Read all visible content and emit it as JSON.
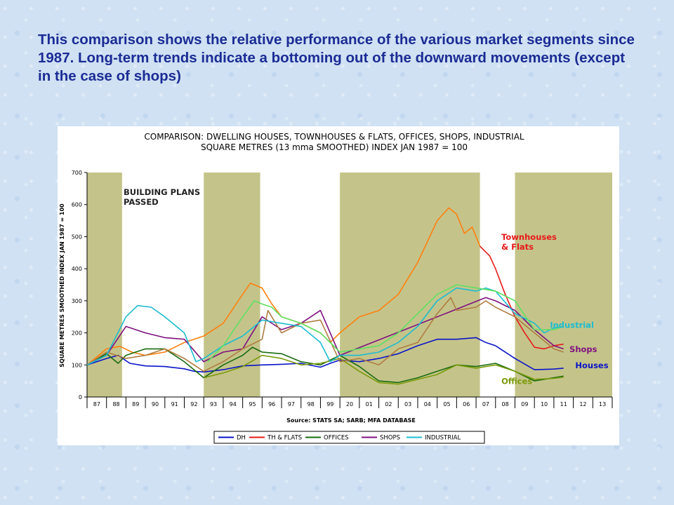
{
  "headline": "This comparison shows the relative performance of the various market segments since 1987.  Long-term trends indicate a bottoming out of the downward movements (except in the case of shops)",
  "chart_data": {
    "type": "line",
    "title": "COMPARISON: DWELLING HOUSES, TOWNHOUSES & FLATS, OFFICES, SHOPS, INDUSTRIAL",
    "subtitle": "SQUARE METRES (13 mma SMOOTHED) INDEX JAN 1987 = 100",
    "ylabel": "SQUARE METRES SMOOTHED INDEX JAN 1987 = 100",
    "xlabel": "Source: STATS SA; SARB; MFA DATABASE",
    "ylim": [
      0,
      700
    ],
    "yticks": [
      "0",
      "100",
      "200",
      "300",
      "400",
      "500",
      "600",
      "700"
    ],
    "xticks": [
      "87",
      "88",
      "89",
      "90",
      "91",
      "92",
      "93",
      "94",
      "95",
      "96",
      "97",
      "98",
      "99",
      "20",
      "01",
      "02",
      "03",
      "04",
      "05",
      "06",
      "07",
      "08",
      "09",
      "10",
      "11",
      "12",
      "13"
    ],
    "xlim": [
      1987,
      2014
    ],
    "shaded_periods": [
      [
        1987.0,
        1988.8
      ],
      [
        1993.0,
        1995.9
      ],
      [
        2000.0,
        2007.2
      ],
      [
        2009.0,
        2014.0
      ]
    ],
    "shaded_label": "BUILDING PLANS PASSED",
    "legend_position": "bottom",
    "series": [
      {
        "key": "dh",
        "name": "DH",
        "color": "#0a14c8",
        "label": "Houses",
        "points": [
          [
            1987,
            100
          ],
          [
            1988,
            120
          ],
          [
            1988.6,
            130
          ],
          [
            1989.2,
            105
          ],
          [
            1990,
            97
          ],
          [
            1991,
            95
          ],
          [
            1992,
            88
          ],
          [
            1992.5,
            80
          ],
          [
            1993,
            78
          ],
          [
            1994,
            85
          ],
          [
            1995,
            97
          ],
          [
            1996,
            100
          ],
          [
            1997,
            102
          ],
          [
            1998,
            105
          ],
          [
            1999,
            93
          ],
          [
            1999.5,
            105
          ],
          [
            2000,
            115
          ],
          [
            2001,
            110
          ],
          [
            2002,
            120
          ],
          [
            2003,
            135
          ],
          [
            2004,
            160
          ],
          [
            2005,
            180
          ],
          [
            2006,
            180
          ],
          [
            2007,
            185
          ],
          [
            2007.5,
            170
          ],
          [
            2008,
            160
          ],
          [
            2009,
            120
          ],
          [
            2010,
            85
          ],
          [
            2011,
            87
          ],
          [
            2011.5,
            90
          ]
        ]
      },
      {
        "key": "thf",
        "name": "TH & FLATS",
        "color": "#e81a1a",
        "label": "Townhouses & Flats",
        "points": [
          [
            2007.2,
            470
          ],
          [
            2007.7,
            440
          ],
          [
            2008,
            400
          ],
          [
            2008.5,
            320
          ],
          [
            2009,
            250
          ],
          [
            2009.5,
            200
          ],
          [
            2010,
            155
          ],
          [
            2010.5,
            150
          ],
          [
            2011,
            160
          ],
          [
            2011.5,
            165
          ]
        ]
      },
      {
        "key": "thf_orange",
        "name": "",
        "color": "#ff7f0e",
        "label": "",
        "points": [
          [
            1987,
            100
          ],
          [
            1988,
            150
          ],
          [
            1988.7,
            158
          ],
          [
            1989.3,
            140
          ],
          [
            1990,
            130
          ],
          [
            1991,
            140
          ],
          [
            1992,
            170
          ],
          [
            1993,
            190
          ],
          [
            1994,
            230
          ],
          [
            1995,
            320
          ],
          [
            1995.4,
            355
          ],
          [
            1996,
            340
          ],
          [
            1996.5,
            290
          ],
          [
            1997,
            250
          ],
          [
            1998,
            230
          ],
          [
            1999,
            200
          ],
          [
            1999.5,
            170
          ],
          [
            2000,
            200
          ],
          [
            2001,
            250
          ],
          [
            2002,
            270
          ],
          [
            2003,
            320
          ],
          [
            2004,
            420
          ],
          [
            2005,
            550
          ],
          [
            2005.6,
            590
          ],
          [
            2006,
            570
          ],
          [
            2006.4,
            510
          ],
          [
            2006.8,
            530
          ],
          [
            2007.2,
            470
          ]
        ]
      },
      {
        "key": "offices",
        "name": "OFFICES",
        "color": "#1a6b0f",
        "label": "",
        "points": [
          [
            1987,
            100
          ],
          [
            1988,
            135
          ],
          [
            1988.6,
            105
          ],
          [
            1989,
            130
          ],
          [
            1990,
            150
          ],
          [
            1991,
            150
          ],
          [
            1992,
            110
          ],
          [
            1993,
            60
          ],
          [
            1994,
            100
          ],
          [
            1995,
            130
          ],
          [
            1995.5,
            155
          ],
          [
            1996,
            140
          ],
          [
            1997,
            135
          ],
          [
            1998,
            110
          ],
          [
            1999,
            100
          ],
          [
            2000,
            130
          ],
          [
            2001,
            95
          ],
          [
            2002,
            50
          ],
          [
            2003,
            45
          ],
          [
            2004,
            60
          ],
          [
            2005,
            80
          ],
          [
            2006,
            100
          ],
          [
            2007,
            95
          ],
          [
            2008,
            105
          ],
          [
            2009,
            80
          ],
          [
            2010,
            50
          ],
          [
            2011,
            60
          ],
          [
            2011.5,
            65
          ]
        ]
      },
      {
        "key": "offices_olive",
        "name": "",
        "color": "#7a9a0a",
        "label": "Offices",
        "points": [
          [
            1993,
            60
          ],
          [
            1994,
            75
          ],
          [
            1995,
            95
          ],
          [
            1996,
            130
          ],
          [
            1997,
            120
          ],
          [
            1998,
            100
          ],
          [
            1999,
            105
          ],
          [
            2000,
            120
          ],
          [
            2001,
            80
          ],
          [
            2002,
            45
          ],
          [
            2003,
            40
          ],
          [
            2004,
            55
          ],
          [
            2005,
            70
          ],
          [
            2006,
            100
          ],
          [
            2007,
            90
          ],
          [
            2008,
            100
          ],
          [
            2009,
            80
          ],
          [
            2010,
            55
          ],
          [
            2011,
            58
          ],
          [
            2011.5,
            62
          ]
        ]
      },
      {
        "key": "shops",
        "name": "SHOPS",
        "color": "#7f107f",
        "label": "Shops",
        "points": [
          [
            1987,
            100
          ],
          [
            1988,
            130
          ],
          [
            1989,
            220
          ],
          [
            1990,
            200
          ],
          [
            1991,
            185
          ],
          [
            1992,
            180
          ],
          [
            1993,
            110
          ],
          [
            1994,
            140
          ],
          [
            1995,
            150
          ],
          [
            1996,
            250
          ],
          [
            1997,
            210
          ],
          [
            1998,
            230
          ],
          [
            1999,
            270
          ],
          [
            1999.5,
            200
          ],
          [
            2000,
            130
          ],
          [
            2007.5,
            310
          ],
          [
            2008,
            300
          ],
          [
            2009,
            270
          ],
          [
            2010,
            210
          ],
          [
            2011,
            160
          ],
          [
            2011.5,
            150
          ]
        ]
      },
      {
        "key": "shops_brown",
        "name": "",
        "color": "#b07c40",
        "label": "",
        "points": [
          [
            1987,
            100
          ],
          [
            1988,
            140
          ],
          [
            1989,
            120
          ],
          [
            1990,
            130
          ],
          [
            1991,
            150
          ],
          [
            1992,
            120
          ],
          [
            1993,
            80
          ],
          [
            1994,
            110
          ],
          [
            1995,
            150
          ],
          [
            1996,
            180
          ],
          [
            1996.3,
            270
          ],
          [
            1997,
            200
          ],
          [
            1998,
            230
          ],
          [
            1999,
            240
          ],
          [
            2000,
            110
          ],
          [
            2001,
            120
          ],
          [
            2002,
            100
          ],
          [
            2003,
            150
          ],
          [
            2004,
            170
          ],
          [
            2005,
            260
          ],
          [
            2005.7,
            310
          ],
          [
            2006,
            270
          ],
          [
            2007,
            280
          ],
          [
            2007.5,
            300
          ],
          [
            2008,
            280
          ],
          [
            2009,
            250
          ],
          [
            2010,
            200
          ],
          [
            2011,
            150
          ],
          [
            2011.5,
            140
          ]
        ]
      },
      {
        "key": "industrial",
        "name": "INDUSTRIAL",
        "color": "#1cbcd0",
        "label": "Industrial",
        "points": [
          [
            1987,
            100
          ],
          [
            1988,
            130
          ],
          [
            1989,
            250
          ],
          [
            1989.6,
            285
          ],
          [
            1990.3,
            280
          ],
          [
            1991,
            250
          ],
          [
            1992,
            200
          ],
          [
            1992.6,
            110
          ],
          [
            1993,
            120
          ],
          [
            1994,
            160
          ],
          [
            1995,
            190
          ],
          [
            1996,
            240
          ],
          [
            1997,
            230
          ],
          [
            1998,
            220
          ],
          [
            1999,
            170
          ],
          [
            1999.5,
            110
          ],
          [
            2000,
            130
          ],
          [
            2001,
            130
          ],
          [
            2002,
            140
          ],
          [
            2003,
            170
          ],
          [
            2004,
            220
          ],
          [
            2005,
            300
          ],
          [
            2006,
            340
          ],
          [
            2007,
            330
          ],
          [
            2007.5,
            340
          ],
          [
            2008,
            330
          ],
          [
            2009,
            260
          ],
          [
            2010,
            230
          ],
          [
            2010.5,
            200
          ],
          [
            2011,
            215
          ],
          [
            2011.5,
            220
          ]
        ]
      },
      {
        "key": "industrial_green",
        "name": "",
        "color": "#5fe062",
        "label": "",
        "points": [
          [
            1993.2,
            110
          ],
          [
            1994,
            160
          ],
          [
            1995,
            250
          ],
          [
            1995.6,
            300
          ],
          [
            1996,
            290
          ],
          [
            1996.5,
            280
          ],
          [
            1997,
            250
          ],
          [
            1998,
            230
          ],
          [
            1999,
            200
          ],
          [
            2000,
            140
          ],
          [
            2001,
            150
          ],
          [
            2002,
            160
          ],
          [
            2003,
            200
          ],
          [
            2004,
            260
          ],
          [
            2005,
            320
          ],
          [
            2006,
            350
          ],
          [
            2007,
            340
          ],
          [
            2008,
            330
          ],
          [
            2009,
            300
          ],
          [
            2010,
            210
          ],
          [
            2011,
            210
          ],
          [
            2011.5,
            220
          ]
        ]
      }
    ],
    "legend": [
      {
        "label": "DH",
        "color": "#0a14c8"
      },
      {
        "label": "TH & FLATS",
        "color": "#e81a1a"
      },
      {
        "label": "OFFICES",
        "color": "#1a6b0f"
      },
      {
        "label": "SHOPS",
        "color": "#7f107f"
      },
      {
        "label": "INDUSTRIAL",
        "color": "#1cbcd0"
      }
    ],
    "annotations": [
      {
        "key": "townhouses",
        "lines": [
          "Townhouses",
          "& Flats"
        ],
        "color": "#e81a1a",
        "x": 2008.3,
        "y": 490
      },
      {
        "key": "industrial",
        "lines": [
          "Industrial"
        ],
        "color": "#1cbcd0",
        "x": 2010.8,
        "y": 215
      },
      {
        "key": "shops",
        "lines": [
          "Shops"
        ],
        "color": "#7f107f",
        "x": 2011.8,
        "y": 140
      },
      {
        "key": "houses",
        "lines": [
          "Houses"
        ],
        "color": "#0a14c8",
        "x": 2012.1,
        "y": 90
      },
      {
        "key": "offices",
        "lines": [
          "Offices"
        ],
        "color": "#7a9a0a",
        "x": 2008.3,
        "y": 40
      }
    ]
  }
}
